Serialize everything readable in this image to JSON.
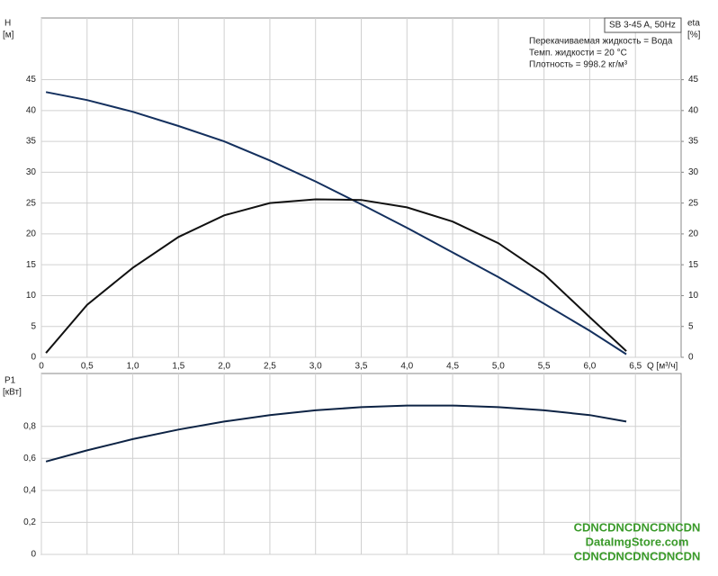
{
  "chart_data": [
    {
      "type": "line",
      "title": "SB 3-45 A, 50Hz",
      "notes": [
        "Перекачиваемая жидкость = Вода",
        "Темп. жидкости = 20 °C",
        "Плотность = 998.2 кг/м³"
      ],
      "y_label": "H",
      "y_unit": "[м]",
      "y2_label": "eta",
      "y2_unit": "[%]",
      "x_label": "Q [м³/ч]",
      "x": [
        0.05,
        0.5,
        1,
        1.5,
        2,
        2.5,
        3,
        3.5,
        4,
        4.5,
        5,
        5.5,
        6,
        6.4
      ],
      "series": [
        {
          "color": "#14305e",
          "values": [
            43,
            41.7,
            39.8,
            37.5,
            35,
            31.9,
            28.5,
            24.8,
            21,
            17,
            13,
            8.7,
            4.3,
            0.5
          ]
        },
        {
          "color": "#111111",
          "axis": "y2",
          "values": [
            0.7,
            8.5,
            14.5,
            19.5,
            23,
            25,
            25.6,
            25.5,
            24.3,
            22,
            18.5,
            13.5,
            6.5,
            1
          ]
        }
      ],
      "xlim": [
        0,
        7.0
      ],
      "xticks": [
        0,
        {
          "value": 0.5,
          "label": "0,5"
        },
        {
          "value": 1,
          "label": "1,0"
        },
        {
          "value": 1.5,
          "label": "1,5"
        },
        {
          "value": 2,
          "label": "2,0"
        },
        {
          "value": 2.5,
          "label": "2,5"
        },
        {
          "value": 3,
          "label": "3,0"
        },
        {
          "value": 3.5,
          "label": "3,5"
        },
        {
          "value": 4,
          "label": "4,0"
        },
        {
          "value": 4.5,
          "label": "4,5"
        },
        {
          "value": 5,
          "label": "5,0"
        },
        {
          "value": 5.5,
          "label": "5,5"
        },
        {
          "value": 6,
          "label": "6,0"
        },
        {
          "value": 6.5,
          "label": "6,5"
        }
      ],
      "ylim": [
        0,
        55
      ],
      "yticks": [
        0,
        5,
        10,
        15,
        20,
        25,
        30,
        35,
        40,
        45
      ],
      "y2lim": [
        0,
        55
      ],
      "y2ticks": [
        0,
        5,
        10,
        15,
        20,
        25,
        30,
        35,
        40,
        45
      ],
      "grid": true
    },
    {
      "type": "line",
      "y_label": "P1",
      "y_unit": "[кВт]",
      "x": [
        0.05,
        0.5,
        1,
        1.5,
        2,
        2.5,
        3,
        3.5,
        4,
        4.5,
        5,
        5.5,
        6,
        6.4
      ],
      "series": [
        {
          "color": "#0d2344",
          "values": [
            0.58,
            0.65,
            0.72,
            0.78,
            0.83,
            0.87,
            0.9,
            0.92,
            0.93,
            0.93,
            0.92,
            0.9,
            0.87,
            0.83
          ]
        }
      ],
      "xlim": [
        0,
        7.0
      ],
      "xticks": [
        0,
        0.5,
        1,
        1.5,
        2,
        2.5,
        3,
        3.5,
        4,
        4.5,
        5,
        5.5,
        6,
        6.5
      ],
      "xtick_labels": false,
      "ylim": [
        0,
        1.13
      ],
      "yticks": [
        0,
        {
          "value": 0.2,
          "label": "0,2"
        },
        {
          "value": 0.4,
          "label": "0,4"
        },
        {
          "value": 0.6,
          "label": "0,6"
        },
        {
          "value": 0.8,
          "label": "0,8"
        }
      ],
      "grid": true
    }
  ],
  "watermark": [
    "CDNCDNCDNCDNCDN",
    "DataImgStore.com",
    "CDNCDNCDNCDNCDN"
  ]
}
